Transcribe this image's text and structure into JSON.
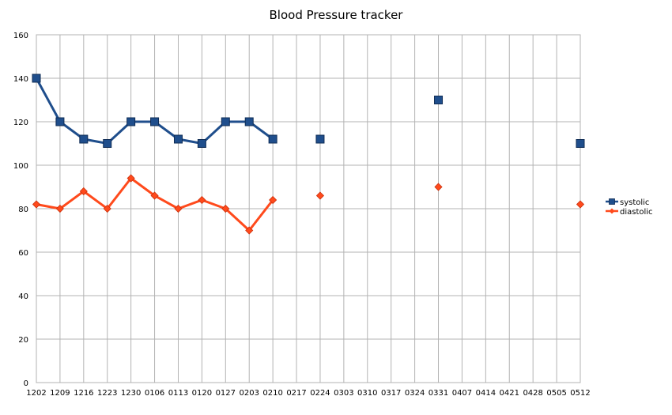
{
  "chart_data": {
    "type": "line",
    "title": "Blood Pressure tracker",
    "xlabel": "",
    "ylabel": "",
    "categories": [
      "1202",
      "1209",
      "1216",
      "1223",
      "1230",
      "0106",
      "0113",
      "0120",
      "0127",
      "0203",
      "0210",
      "0217",
      "0224",
      "0303",
      "0310",
      "0317",
      "0324",
      "0331",
      "0407",
      "0414",
      "0421",
      "0428",
      "0505",
      "0512"
    ],
    "ylim": [
      0,
      160
    ],
    "yticks": [
      0,
      20,
      40,
      60,
      80,
      100,
      120,
      140,
      160
    ],
    "grid": true,
    "legend_position": "right",
    "series": [
      {
        "name": "systolic",
        "color": "#1f4e8c",
        "marker": "square",
        "values": [
          140,
          120,
          112,
          110,
          120,
          120,
          112,
          110,
          120,
          120,
          112,
          null,
          112,
          null,
          null,
          null,
          null,
          130,
          null,
          null,
          null,
          null,
          null,
          110
        ]
      },
      {
        "name": "diastolic",
        "color": "#ff4a1c",
        "marker": "diamond",
        "values": [
          82,
          80,
          88,
          80,
          94,
          86,
          80,
          84,
          80,
          70,
          84,
          null,
          86,
          null,
          null,
          null,
          null,
          90,
          null,
          null,
          null,
          null,
          null,
          82
        ]
      }
    ]
  }
}
